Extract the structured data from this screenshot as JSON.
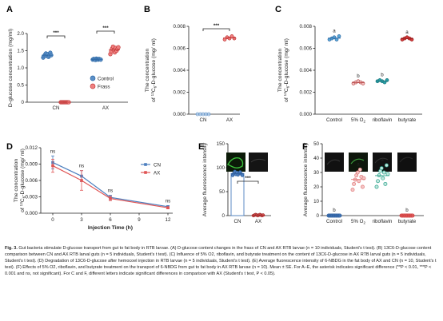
{
  "panel_letters": [
    "A",
    "B",
    "C",
    "D",
    "E",
    "F"
  ],
  "colors": {
    "control": "#5b8fc7",
    "control_edge": "#2f6aa6",
    "frass": "#f08080",
    "frass_edge": "#c23a3a",
    "C_control": "#5aa7d6",
    "C_o2": "#e07a7a",
    "C_ribo": "#2aa0a8",
    "C_buty": "#d23b3b",
    "F_control": "#4a7fc0",
    "F_o2": "#e07a7a",
    "F_ribo": "#2aa08a",
    "F_buty": "#d23b3b",
    "D_cn": "#4c7fbf",
    "D_ax": "#e05555",
    "E_cn": "#4c7fbf",
    "E_ax": "#e05555"
  },
  "chart_data": [
    {
      "panel": "A",
      "type": "scatter",
      "ylabel": "D-glucose concentration (mg/ml)",
      "ylim": [
        0,
        2.0
      ],
      "yticks": [
        "0",
        "0.5",
        "1.0",
        "1.5",
        "2.0"
      ],
      "categories": [
        "CN",
        "AX"
      ],
      "legend": [
        "Control",
        "Frass"
      ],
      "significance": [
        "***",
        "***"
      ],
      "series": [
        {
          "name": "Control",
          "values": [
            [
              1.3,
              1.34,
              1.38,
              1.42,
              1.35,
              1.4,
              1.32,
              1.36,
              1.44,
              1.37
            ],
            [
              1.24,
              1.26,
              1.25,
              1.23,
              1.27,
              1.25,
              1.24,
              1.26,
              1.25,
              1.24
            ]
          ]
        },
        {
          "name": "Frass",
          "values": [
            [
              0,
              0,
              0,
              0,
              0,
              0,
              0,
              0,
              0,
              0
            ],
            [
              1.4,
              1.48,
              1.56,
              1.62,
              1.52,
              1.45,
              1.58,
              1.5,
              1.55,
              1.6
            ]
          ]
        }
      ]
    },
    {
      "panel": "B",
      "type": "scatter",
      "ylabel_line1": "The concentration",
      "ylabel_line2": "of 13C6-D-glucose (mg/ ml)",
      "ylim": [
        0,
        0.008
      ],
      "yticks": [
        "0.000",
        "0.002",
        "0.004",
        "0.006",
        "0.008"
      ],
      "categories": [
        "CN",
        "AX"
      ],
      "significance": [
        "***"
      ],
      "values": [
        [
          0,
          0,
          0,
          0,
          0
        ],
        [
          0.0068,
          0.007,
          0.0069,
          0.0071,
          0.0069
        ]
      ]
    },
    {
      "panel": "C",
      "type": "scatter",
      "ylabel_line1": "The concentration",
      "ylabel_line2": "of 13C6-D-glucose (mg/ ml)",
      "ylim": [
        0,
        0.008
      ],
      "yticks": [
        "0.000",
        "0.002",
        "0.004",
        "0.006",
        "0.008"
      ],
      "categories": [
        "Control",
        "5% O2",
        "riboflavin",
        "butyrate"
      ],
      "letters": [
        "a",
        "b",
        "b",
        "a"
      ],
      "values": [
        [
          0.0068,
          0.0069,
          0.007,
          0.0068,
          0.0071
        ],
        [
          0.0028,
          0.0029,
          0.003,
          0.0029,
          0.0028
        ],
        [
          0.003,
          0.0031,
          0.003,
          0.0029,
          0.0031
        ],
        [
          0.0068,
          0.0069,
          0.007,
          0.0069,
          0.0068
        ]
      ]
    },
    {
      "panel": "D",
      "type": "line",
      "ylabel_line1": "The concentration",
      "ylabel_line2": "of 13C6-D-glucose (mg/ ml)",
      "xlabel": "Injection Time (h)",
      "x": [
        0,
        3,
        6,
        12
      ],
      "xticks": [
        "0",
        "3",
        "6",
        "9",
        "12"
      ],
      "xlim": [
        0,
        12
      ],
      "ylim": [
        0,
        0.012
      ],
      "yticks": [
        "0.000",
        "0.003",
        "0.006",
        "0.009",
        "0.012"
      ],
      "significance": [
        "ns",
        "ns",
        "ns",
        "ns"
      ],
      "series": [
        {
          "name": "CN",
          "values": [
            0.0093,
            0.0068,
            0.0029,
            0.0012
          ],
          "err": [
            0.0012,
            0.001,
            0.0004,
            0.0002
          ]
        },
        {
          "name": "AX",
          "values": [
            0.0087,
            0.006,
            0.0027,
            0.001
          ],
          "err": [
            0.0012,
            0.0018,
            0.0004,
            0.0002
          ]
        }
      ]
    },
    {
      "panel": "E",
      "type": "bar",
      "ylabel": "Average fluorescence intensity",
      "ylim": [
        0,
        150
      ],
      "yticks": [
        "0",
        "50",
        "100",
        "150"
      ],
      "categories": [
        "CN",
        "AX"
      ],
      "significance": [
        "***"
      ],
      "values": [
        88,
        1
      ],
      "points": [
        [
          84,
          88,
          92,
          86,
          90,
          85,
          89,
          91,
          87,
          84
        ],
        [
          0,
          1,
          2,
          1,
          0,
          1,
          2,
          1,
          0,
          1
        ]
      ]
    },
    {
      "panel": "F",
      "type": "scatter",
      "ylabel": "Average fluorescence intensity",
      "ylim": [
        0,
        50
      ],
      "yticks": [
        "0",
        "10",
        "20",
        "30",
        "40",
        "50"
      ],
      "categories": [
        "Control",
        "5% O2",
        "riboflavin",
        "butyrate"
      ],
      "letters": [
        "b",
        "a",
        "a",
        "b"
      ],
      "values": [
        [
          0,
          0,
          0,
          0,
          0,
          0,
          0,
          0,
          0,
          0
        ],
        [
          18,
          22,
          25,
          28,
          30,
          24,
          32,
          27,
          20,
          26
        ],
        [
          20,
          24,
          28,
          31,
          33,
          26,
          30,
          22,
          35,
          29
        ],
        [
          0,
          0,
          0,
          0,
          0,
          0,
          0,
          0,
          0,
          0
        ]
      ]
    }
  ],
  "caption": {
    "fig": "Fig. 3.",
    "text": "Gut bacteria stimulate D-glucose transport from gut to fat body in RTB larvae. (A) D-glucose content changes in the frass of CN and AX RTB larvae (n = 10 individuals, Student's t test). (B) 13C6-D-glucose content comparison between CN and AX RTB larval guts (n = 5 individuals, Student's t test). (C) Influence of 5% O2, riboflavin, and butyrate treatment on the content of 13C6-D-glucose in AX RTB larval guts (n = 5 individuals, Student's t test). (D) Degradation of 13C6-D-glucose after hemocoel injection in RTB larvae (n = 5 individuals, Student's t test). (E) Average fluorescence intensity of 6-NBDG in the fat body of AX and CN (n = 10, Student's t test). (F) Effects of 5% O2, riboflavin, and butyrate treatment on the transport of 6-NBDG from gut to fat body in AX RTB larvae (n = 10). Mean ± SE. For A–E, the asterisk indicates significant difference (**P < 0.01, ***P < 0.001 and ns, not significant). For C and F, different letters indicate significant differences in comparison with AX (Student's t test, P < 0.05)."
  }
}
